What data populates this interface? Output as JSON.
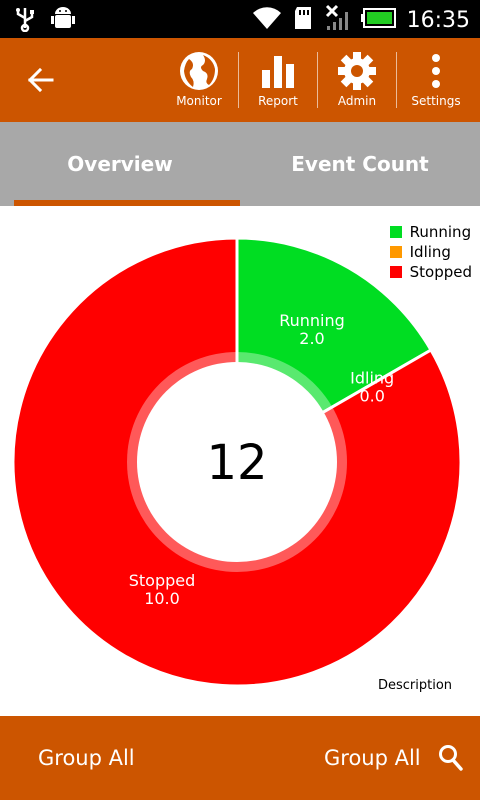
{
  "status_bar": {
    "time": "16:35",
    "icons": [
      "usb-icon",
      "android-debug-icon",
      "wifi-icon",
      "sd-card-icon",
      "no-signal-icon",
      "battery-icon"
    ]
  },
  "app_bar": {
    "back_icon": "arrow-back-icon",
    "actions": [
      {
        "label": "Monitor",
        "icon": "globe-icon"
      },
      {
        "label": "Report",
        "icon": "bar-chart-icon"
      },
      {
        "label": "Admin",
        "icon": "gear-icon"
      },
      {
        "label": "Settings",
        "icon": "more-vert-icon"
      }
    ]
  },
  "tabs": [
    {
      "label": "Overview",
      "active": true
    },
    {
      "label": "Event Count",
      "active": false
    }
  ],
  "chart_data": {
    "type": "pie",
    "labels": [
      "Running",
      "Idling",
      "Stopped"
    ],
    "values": [
      2.0,
      0.0,
      10.0
    ],
    "value_labels": [
      "2.0",
      "0.0",
      "10.0"
    ],
    "colors": [
      "#00dd22",
      "#ff9900",
      "#ff0000"
    ],
    "center_text": "12",
    "legend_position": "top-right",
    "description": "Description"
  },
  "bottom_bar": {
    "left_label": "Group All",
    "right_label": "Group All",
    "search_icon": "search-icon"
  }
}
